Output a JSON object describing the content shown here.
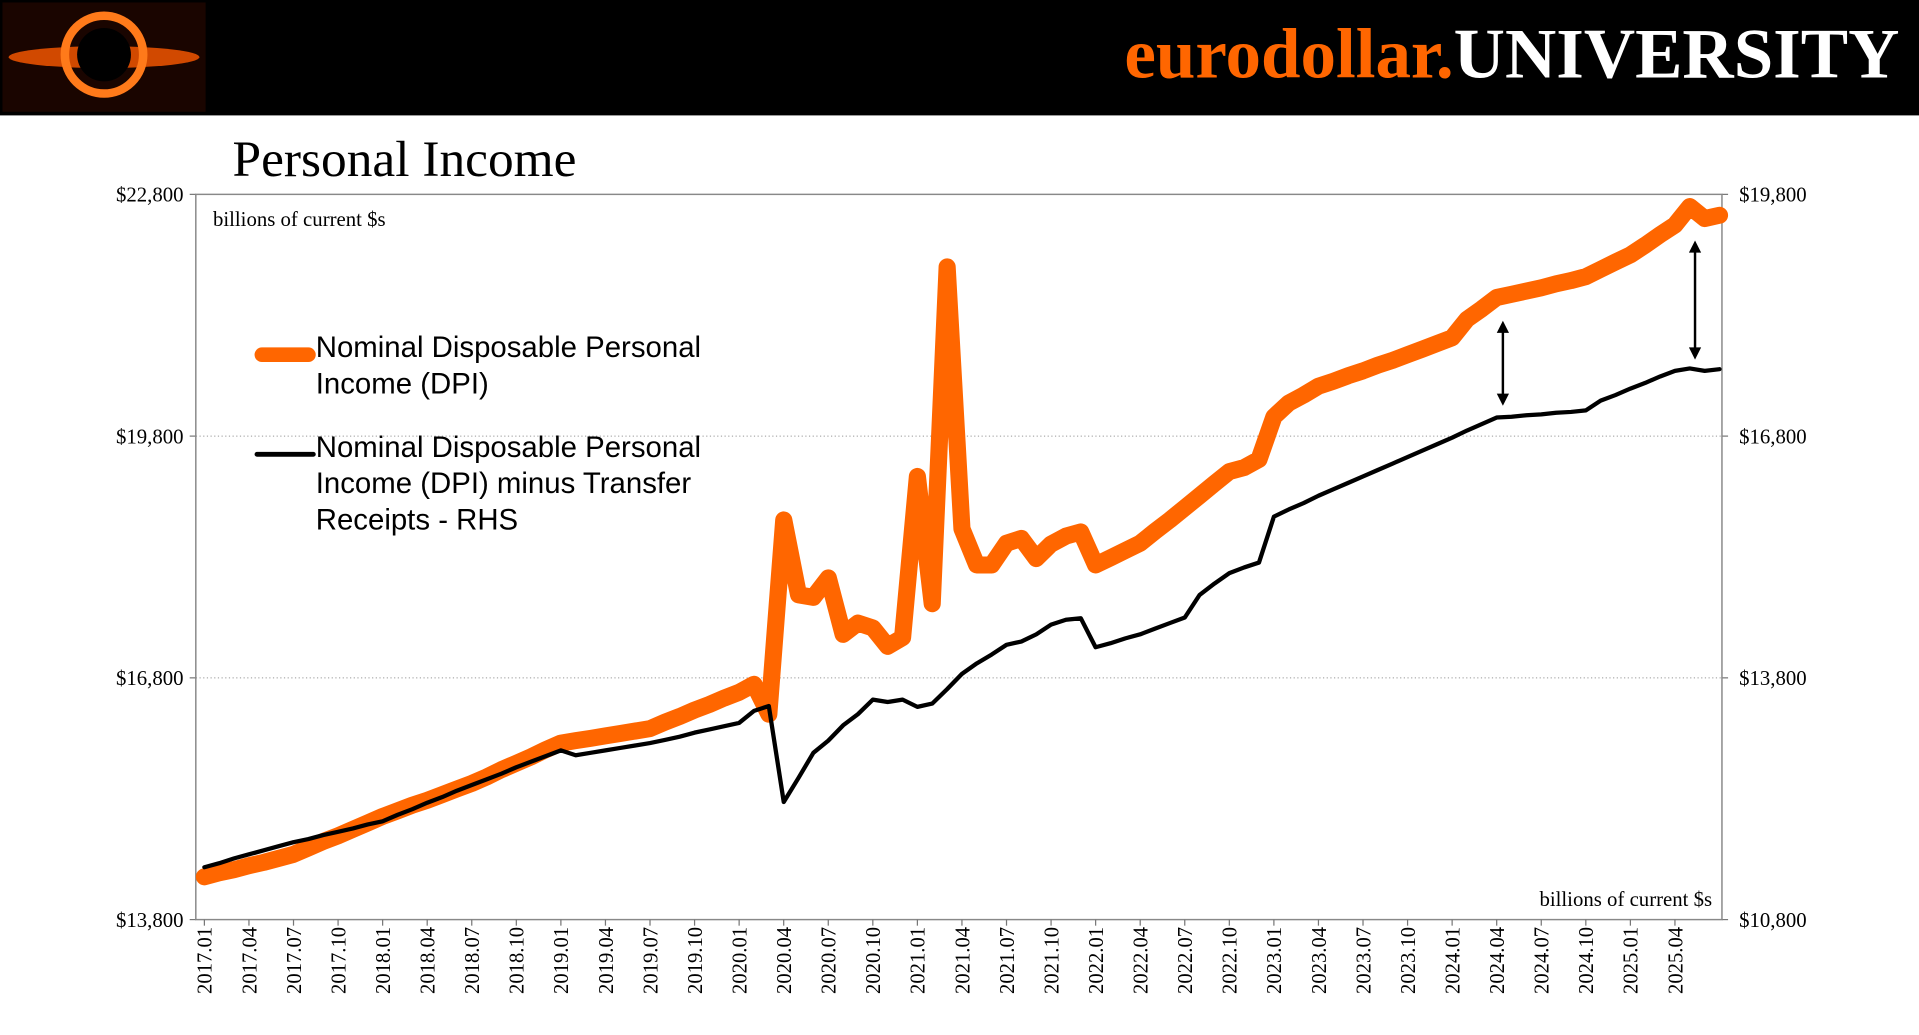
{
  "brand": {
    "name": "eurodollar.",
    "suffix": "UNIVERSITY"
  },
  "chart_data": {
    "type": "line",
    "title": "Personal Income",
    "y_label": "billions of current $s",
    "y2_label": "billions of current $s",
    "categories": [
      "2017.01",
      null,
      null,
      "2017.04",
      null,
      null,
      "2017.07",
      null,
      null,
      "2017.10",
      null,
      null,
      "2018.01",
      null,
      null,
      "2018.04",
      null,
      null,
      "2018.07",
      null,
      null,
      "2018.10",
      null,
      null,
      "2019.01",
      null,
      null,
      "2019.04",
      null,
      null,
      "2019.07",
      null,
      null,
      "2019.10",
      null,
      null,
      "2020.01",
      null,
      null,
      "2020.04",
      null,
      null,
      "2020.07",
      null,
      null,
      "2020.10",
      null,
      null,
      "2021.01",
      null,
      null,
      "2021.04",
      null,
      null,
      "2021.07",
      null,
      null,
      "2021.10",
      null,
      null,
      "2022.01",
      null,
      null,
      "2022.04",
      null,
      null,
      "2022.07",
      null,
      null,
      "2022.10",
      null,
      null,
      "2023.01",
      null,
      null,
      "2023.04",
      null,
      null,
      "2023.07",
      null,
      null,
      "2023.10",
      null,
      null,
      "2024.01",
      null,
      null,
      "2024.04",
      null,
      null,
      "2024.07",
      null,
      null,
      "2024.10",
      null,
      null,
      "2025.01",
      null,
      null,
      "2025.04",
      null,
      null,
      null
    ],
    "series": [
      {
        "name": "Nominal Disposable Personal Income (DPI)",
        "color": "#ff6600",
        "values": [
          14330,
          14380,
          14420,
          14470,
          14510,
          14560,
          14610,
          14690,
          14770,
          14840,
          14920,
          15000,
          15080,
          15150,
          15220,
          15280,
          15350,
          15420,
          15490,
          15570,
          15660,
          15740,
          15820,
          15910,
          15990,
          16020,
          16050,
          16080,
          16110,
          16140,
          16170,
          16250,
          16320,
          16400,
          16470,
          16550,
          16620,
          16720,
          16350,
          18760,
          17830,
          17800,
          18040,
          17340,
          17480,
          17420,
          17190,
          17300,
          19300,
          17720,
          21900,
          18650,
          18200,
          18200,
          18470,
          18530,
          18280,
          18460,
          18560,
          18610,
          18200,
          18290,
          18380,
          18470,
          18620,
          18760,
          18910,
          19060,
          19210,
          19360,
          19410,
          19510,
          20040,
          20210,
          20310,
          20420,
          20480,
          20550,
          20610,
          20680,
          20740,
          20810,
          20880,
          20950,
          21020,
          21250,
          21380,
          21520,
          21560,
          21600,
          21640,
          21690,
          21730,
          21780,
          21870,
          21960,
          22050,
          22170,
          22300,
          22420,
          22650,
          22500,
          22540
        ]
      },
      {
        "name": "Nominal Disposable Personal Income (DPI) minus Transfer Receipts - RHS",
        "color": "#000000",
        "axis": "y2",
        "values": [
          11450,
          11500,
          11560,
          11610,
          11660,
          11710,
          11760,
          11800,
          11850,
          11890,
          11930,
          11980,
          12020,
          12100,
          12170,
          12250,
          12320,
          12400,
          12470,
          12540,
          12610,
          12690,
          12760,
          12830,
          12900,
          12840,
          12870,
          12900,
          12930,
          12960,
          12990,
          13030,
          13070,
          13120,
          13160,
          13200,
          13240,
          13390,
          13450,
          12260,
          12560,
          12870,
          13020,
          13210,
          13350,
          13530,
          13500,
          13530,
          13440,
          13480,
          13660,
          13850,
          13980,
          14090,
          14210,
          14250,
          14340,
          14460,
          14520,
          14540,
          14180,
          14230,
          14290,
          14340,
          14410,
          14480,
          14550,
          14830,
          14970,
          15100,
          15170,
          15230,
          15800,
          15890,
          15970,
          16060,
          16140,
          16220,
          16300,
          16380,
          16460,
          16540,
          16620,
          16700,
          16780,
          16870,
          16950,
          17030,
          17040,
          17060,
          17070,
          17090,
          17100,
          17120,
          17240,
          17310,
          17390,
          17460,
          17540,
          17610,
          17640,
          17610,
          17630
        ]
      }
    ],
    "ylim": [
      13800,
      22800
    ],
    "yticks": [
      {
        "value": 13800,
        "label": "$13,800"
      },
      {
        "value": 16800,
        "label": "$16,800"
      },
      {
        "value": 19800,
        "label": "$19,800"
      },
      {
        "value": 22800,
        "label": "$22,800"
      }
    ],
    "y2lim": [
      10800,
      19800
    ],
    "y2ticks": [
      {
        "value": 10800,
        "label": "$10,800"
      },
      {
        "value": 13800,
        "label": "$13,800"
      },
      {
        "value": 16800,
        "label": "$16,800"
      },
      {
        "value": 19800,
        "label": "$19,800"
      }
    ],
    "grid": true,
    "legend": "upper left"
  }
}
